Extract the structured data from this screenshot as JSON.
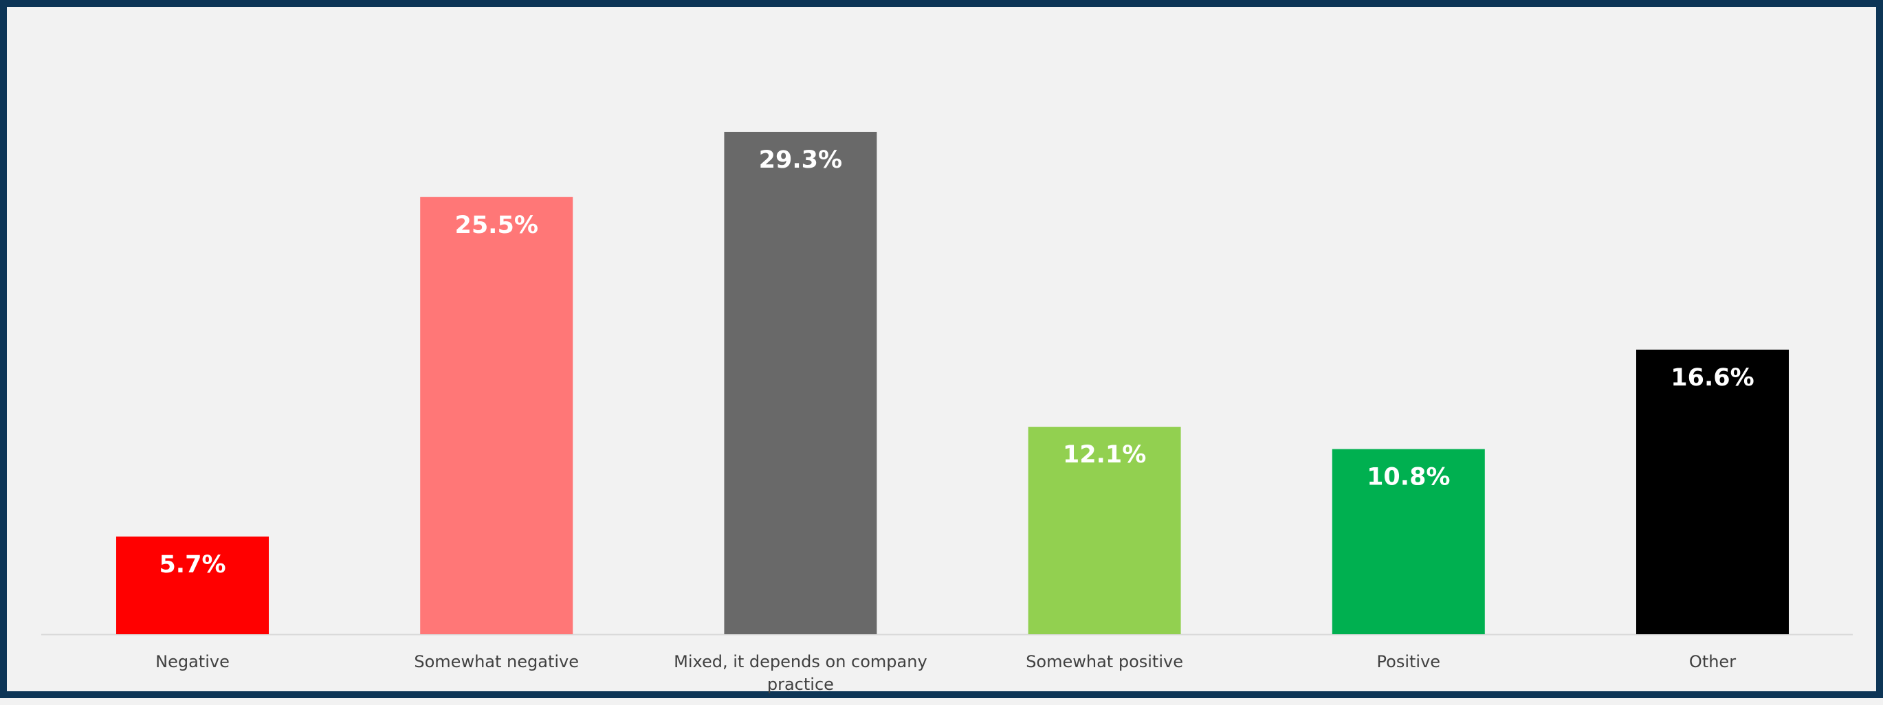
{
  "chart_data": {
    "type": "bar",
    "categories": [
      "Negative",
      "Somewhat negative",
      "Mixed, it depends on company practice",
      "Somewhat positive",
      "Positive",
      "Other"
    ],
    "category_lines": [
      [
        "Negative"
      ],
      [
        "Somewhat negative"
      ],
      [
        "Mixed, it depends on company",
        "practice"
      ],
      [
        "Somewhat positive"
      ],
      [
        "Positive"
      ],
      [
        "Other"
      ]
    ],
    "values": [
      5.7,
      25.5,
      29.3,
      12.1,
      10.8,
      16.6
    ],
    "value_labels": [
      "5.7%",
      "25.5%",
      "29.3%",
      "12.1%",
      "10.8%",
      "16.6%"
    ],
    "colors": [
      "#ff0000",
      "#ff7777",
      "#696969",
      "#92d050",
      "#00b050",
      "#000000"
    ],
    "unit": "%",
    "ylim": [
      0,
      35
    ],
    "grid": false,
    "legend": "none",
    "title": "",
    "xlabel": "",
    "ylabel": ""
  }
}
